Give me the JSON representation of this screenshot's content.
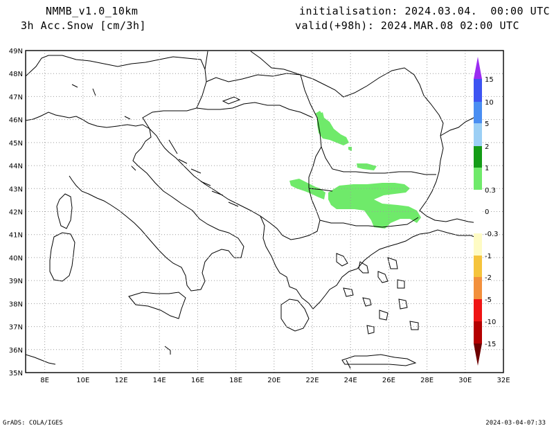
{
  "header": {
    "model": "NMMB_v1.0_10km",
    "variable": "3h Acc.Snow [cm/3h]",
    "init": "initialisation: 2024.03.04.  00:00 UTC",
    "valid": "valid(+98h): 2024.MAR.08 02:00 UTC"
  },
  "footer": {
    "credit": "GrADS: COLA/IGES",
    "timestamp": "2024-03-04-07:33"
  },
  "axes": {
    "lon_labels": [
      "8E",
      "10E",
      "12E",
      "14E",
      "16E",
      "18E",
      "20E",
      "22E",
      "24E",
      "26E",
      "28E",
      "30E",
      "32E"
    ],
    "lat_labels": [
      "49N",
      "48N",
      "47N",
      "46N",
      "45N",
      "44N",
      "43N",
      "42N",
      "41N",
      "40N",
      "39N",
      "38N",
      "37N",
      "36N",
      "35N"
    ]
  },
  "colorbar": {
    "labels": [
      "15",
      "10",
      "5",
      "2",
      "1",
      "0.3",
      "0",
      "-0.3",
      "-1",
      "-2",
      "-5",
      "-10",
      "-15"
    ],
    "colors": {
      "above15": "#9b2cf2",
      "c10_15": "#3d54f2",
      "c5_10": "#4a8ef2",
      "c2_5": "#9ccff5",
      "c1_2": "#139c16",
      "c03_1": "#6fea6a",
      "neutral": "#ffffff",
      "n03_1": "#fefbc4",
      "n1_2": "#f5c43c",
      "n2_5": "#f2903c",
      "n5_10": "#ef1414",
      "n10_15": "#b40000",
      "below15": "#6e0000"
    }
  },
  "map": {
    "extent": {
      "lon": [
        7,
        32
      ],
      "lat": [
        35,
        49
      ]
    },
    "grid": "dotted",
    "snow_color": "#6fea6a"
  }
}
